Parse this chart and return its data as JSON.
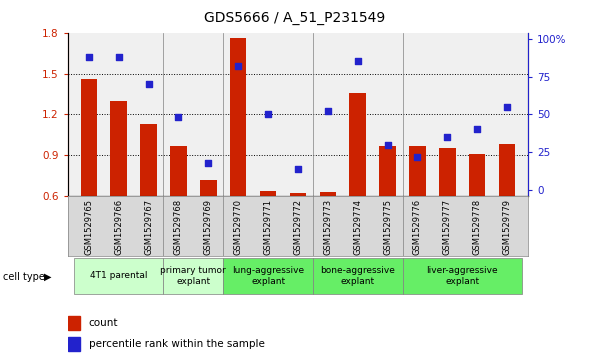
{
  "title": "GDS5666 / A_51_P231549",
  "samples": [
    "GSM1529765",
    "GSM1529766",
    "GSM1529767",
    "GSM1529768",
    "GSM1529769",
    "GSM1529770",
    "GSM1529771",
    "GSM1529772",
    "GSM1529773",
    "GSM1529774",
    "GSM1529775",
    "GSM1529776",
    "GSM1529777",
    "GSM1529778",
    "GSM1529779"
  ],
  "bar_values": [
    1.46,
    1.3,
    1.13,
    0.97,
    0.72,
    1.76,
    0.64,
    0.62,
    0.63,
    1.36,
    0.97,
    0.97,
    0.95,
    0.91,
    0.98
  ],
  "percentile_values": [
    88,
    88,
    70,
    48,
    18,
    82,
    50,
    14,
    52,
    85,
    30,
    22,
    35,
    40,
    55
  ],
  "ylim": [
    0.6,
    1.8
  ],
  "yticks": [
    0.6,
    0.9,
    1.2,
    1.5,
    1.8
  ],
  "right_yticks": [
    0,
    25,
    50,
    75,
    100
  ],
  "bar_color": "#cc2200",
  "scatter_color": "#2222cc",
  "cell_types": [
    {
      "label": "4T1 parental",
      "indices": [
        0,
        1,
        2
      ],
      "color": "#ccffcc"
    },
    {
      "label": "primary tumor\nexplant",
      "indices": [
        3,
        4
      ],
      "color": "#ccffcc"
    },
    {
      "label": "lung-aggressive\nexplant",
      "indices": [
        5,
        6,
        7
      ],
      "color": "#66ee66"
    },
    {
      "label": "bone-aggressive\nexplant",
      "indices": [
        8,
        9,
        10
      ],
      "color": "#66ee66"
    },
    {
      "label": "liver-aggressive\nexplant",
      "indices": [
        11,
        12,
        13,
        14
      ],
      "color": "#66ee66"
    }
  ],
  "cell_type_label": "cell type",
  "legend_count_label": "count",
  "legend_percentile_label": "percentile rank within the sample",
  "xlim_lo": -0.7,
  "xlim_hi": 14.7
}
